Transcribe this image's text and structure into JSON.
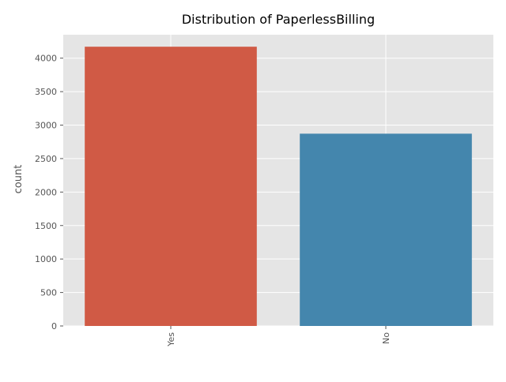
{
  "chart_data": {
    "type": "bar",
    "title": "Distribution of PaperlessBilling",
    "xlabel": "",
    "ylabel": "count",
    "categories": [
      "Yes",
      "No"
    ],
    "values": [
      4171,
      2872
    ],
    "colors": [
      "#d05a45",
      "#4486ad"
    ],
    "ylim": [
      0,
      4350
    ],
    "yticks": [
      0,
      500,
      1000,
      1500,
      2000,
      2500,
      3000,
      3500,
      4000
    ],
    "ytick_labels": [
      "0",
      "500",
      "1000",
      "1500",
      "2000",
      "2500",
      "3000",
      "3500",
      "4000"
    ],
    "xtick_rotation": 90,
    "grid": true,
    "style": "ggplot",
    "background_color": "#e5e5e5",
    "grid_color": "#ffffff"
  }
}
